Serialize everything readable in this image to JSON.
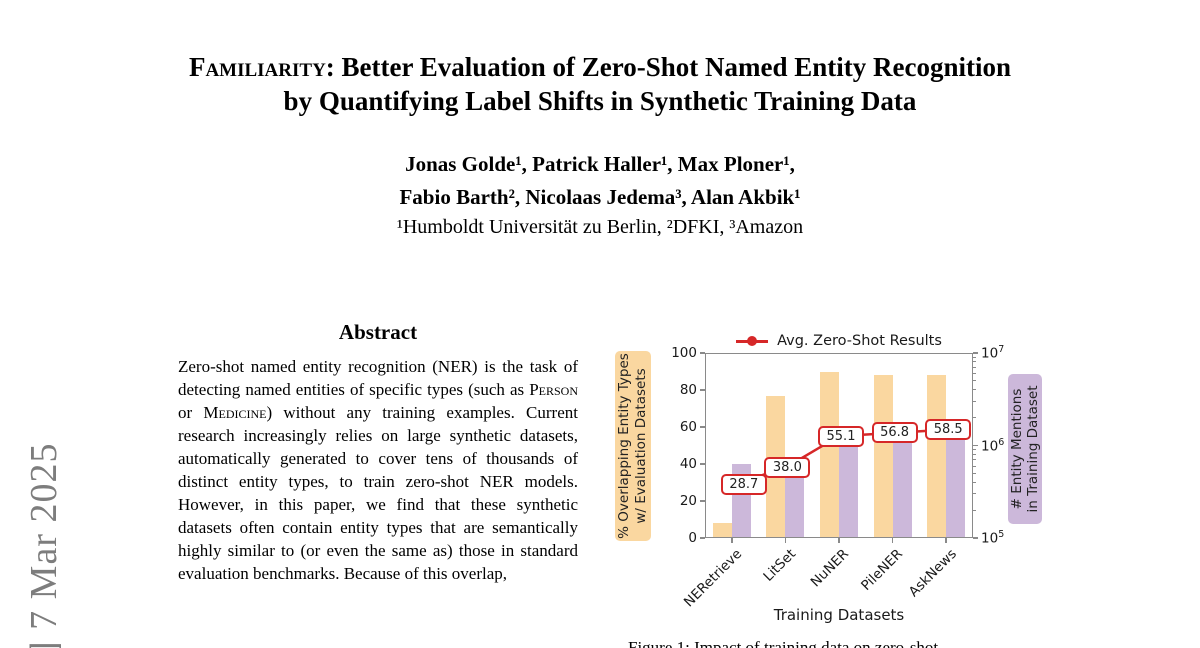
{
  "arxiv_sidebar": {
    "text": "] 7 Mar 2025"
  },
  "title": {
    "sc_word": "Familiarity:",
    "line1_rest": " Better Evaluation of Zero-Shot Named Entity Recognition",
    "line2": "by Quantifying Label Shifts in Synthetic Training Data"
  },
  "authors": {
    "line1": "Jonas Golde¹, Patrick Haller¹, Max Ploner¹,",
    "line2": "Fabio Barth², Nicolaas Jedema³, Alan Akbik¹",
    "affiliations": "¹Humboldt Universität zu Berlin, ²DFKI, ³Amazon"
  },
  "abstract": {
    "heading": "Abstract",
    "p1": "Zero-shot named entity recognition (NER) is the task of detecting named entities of specific types (such as ",
    "sc1": "Person",
    "p2": " or ",
    "sc2": "Medicine",
    "p3": ") without any training examples. Current research increasingly relies on large synthetic datasets, automatically generated to cover tens of thousands of distinct entity types, to train zero-shot NER models. However, in this paper, we find that these synthetic datasets often contain entity types that are semantically highly similar to (or even the same as) those in standard evaluation benchmarks. Because of this overlap,"
  },
  "figure": {
    "caption_partial": "Figure 1: Impact of training data on zero-shot"
  },
  "chart_data": {
    "type": "bar",
    "categories": [
      "NERetrieve",
      "LitSet",
      "NuNER",
      "PileNER",
      "AskNews"
    ],
    "series": [
      {
        "name": "% Overlapping Entity Types w/ Evaluation Datasets",
        "type": "bar",
        "axis": "left",
        "color": "#FAD7A0",
        "values": [
          8,
          77,
          90,
          88,
          88
        ]
      },
      {
        "name": "# Entity Mentions in Training Dataset",
        "type": "bar",
        "axis": "right",
        "color": "#CCB8DA",
        "values": [
          630000,
          460000,
          1000000,
          1100000,
          1150000
        ]
      },
      {
        "name": "Avg. Zero-Shot Results",
        "type": "line",
        "axis": "left",
        "color": "#D62728",
        "values": [
          28.7,
          38.0,
          55.1,
          56.8,
          58.5
        ]
      }
    ],
    "line_labels": [
      "28.7",
      "38.0",
      "55.1",
      "56.8",
      "58.5"
    ],
    "title": "",
    "xlabel": "Training Datasets",
    "left_axis": {
      "label_line1": "% Overlapping Entity Types",
      "label_line2": "w/ Evaluation Datasets",
      "ticks": [
        0,
        20,
        40,
        60,
        80,
        100
      ],
      "range": [
        0,
        100
      ],
      "highlight_color": "#FAD7A0"
    },
    "right_axis": {
      "label_line1": "# Entity Mentions",
      "label_line2": "in Training Dataset",
      "scale": "log",
      "tick_exponents": [
        7,
        6,
        5
      ],
      "range": [
        100000,
        10000000
      ],
      "highlight_color": "#CCB8DA"
    },
    "legend": {
      "label": "Avg. Zero-Shot Results",
      "position": "top-center",
      "color": "#D62728"
    },
    "grid": false
  }
}
